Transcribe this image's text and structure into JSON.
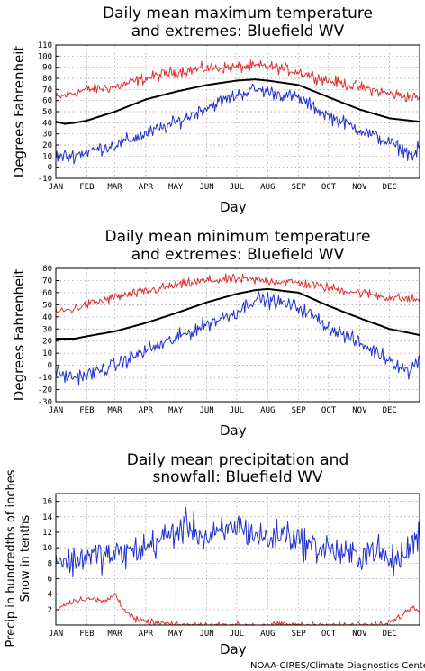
{
  "chart_data": [
    {
      "type": "line",
      "title": [
        "Daily mean maximum temperature",
        "and extremes: Bluefield WV"
      ],
      "xlabel": "Day",
      "ylabel": "Degrees Fahrenheit",
      "months": [
        "JAN",
        "FEB",
        "MAR",
        "APR",
        "MAY",
        "JUN",
        "JUL",
        "AUG",
        "SEP",
        "OCT",
        "NOV",
        "DEC"
      ],
      "ylim": [
        -10,
        110
      ],
      "yticks": [
        -10,
        0,
        10,
        20,
        30,
        40,
        50,
        60,
        70,
        80,
        90,
        100,
        110
      ],
      "grid": true,
      "series": [
        {
          "color": "#e03030",
          "width": 1,
          "noise": 5,
          "x": [
            1,
            15,
            32,
            60,
            91,
            121,
            152,
            182,
            213,
            244,
            274,
            305,
            335,
            365
          ],
          "values": [
            62,
            66,
            70,
            72,
            80,
            86,
            89,
            90,
            91,
            86,
            78,
            72,
            66,
            62
          ]
        },
        {
          "color": "#000000",
          "width": 2,
          "noise": 0,
          "x": [
            1,
            10,
            20,
            32,
            60,
            91,
            121,
            152,
            182,
            200,
            213,
            244,
            274,
            305,
            335,
            365
          ],
          "values": [
            41,
            39,
            40,
            42,
            50,
            61,
            68,
            74,
            78,
            79,
            78,
            74,
            63,
            52,
            44,
            41
          ]
        },
        {
          "color": "#2030d0",
          "width": 1,
          "noise": 6,
          "x": [
            1,
            15,
            32,
            60,
            91,
            121,
            152,
            182,
            200,
            213,
            244,
            274,
            305,
            335,
            360,
            365
          ],
          "values": [
            10,
            10,
            14,
            20,
            30,
            40,
            54,
            65,
            70,
            68,
            62,
            46,
            34,
            22,
            10,
            20
          ]
        }
      ]
    },
    {
      "type": "line",
      "title": [
        "Daily mean minimum temperature",
        "and extremes: Bluefield WV"
      ],
      "xlabel": "Day",
      "ylabel": "Degrees Fahrenheit",
      "months": [
        "JAN",
        "FEB",
        "MAR",
        "APR",
        "MAY",
        "JUN",
        "JUL",
        "AUG",
        "SEP",
        "OCT",
        "NOV",
        "DEC"
      ],
      "ylim": [
        -30,
        80
      ],
      "yticks": [
        -30,
        -20,
        -10,
        0,
        10,
        20,
        30,
        40,
        50,
        60,
        70,
        80
      ],
      "grid": true,
      "series": [
        {
          "color": "#e03030",
          "width": 1,
          "noise": 4,
          "x": [
            1,
            15,
            32,
            60,
            91,
            121,
            152,
            182,
            213,
            244,
            274,
            305,
            335,
            365
          ],
          "values": [
            44,
            46,
            50,
            56,
            61,
            66,
            70,
            71,
            70,
            68,
            64,
            60,
            56,
            54
          ]
        },
        {
          "color": "#000000",
          "width": 2,
          "noise": 0,
          "x": [
            1,
            20,
            32,
            60,
            91,
            121,
            152,
            182,
            200,
            213,
            244,
            274,
            305,
            335,
            365
          ],
          "values": [
            22,
            22,
            24,
            28,
            35,
            43,
            52,
            59,
            62,
            63,
            60,
            49,
            39,
            30,
            25
          ]
        },
        {
          "color": "#2030d0",
          "width": 1,
          "noise": 6,
          "x": [
            1,
            15,
            32,
            60,
            91,
            121,
            152,
            182,
            200,
            213,
            244,
            274,
            305,
            335,
            355,
            365
          ],
          "values": [
            -6,
            -10,
            -8,
            0,
            12,
            22,
            34,
            44,
            55,
            54,
            48,
            32,
            18,
            5,
            -6,
            8
          ]
        }
      ]
    },
    {
      "type": "line",
      "title": [
        "Daily mean precipitation and",
        "snowfall: Bluefield WV"
      ],
      "xlabel": "Day",
      "ylabel": [
        "Precip in hundredths of inches",
        "Snow in tenths"
      ],
      "months": [
        "JAN",
        "FEB",
        "MAR",
        "APR",
        "MAY",
        "JUN",
        "JUL",
        "AUG",
        "SEP",
        "OCT",
        "NOV",
        "DEC"
      ],
      "ylim": [
        0,
        17
      ],
      "yticks": [
        2,
        4,
        6,
        8,
        10,
        12,
        14,
        16
      ],
      "grid": true,
      "series": [
        {
          "color": "#2030d0",
          "width": 1,
          "noise": 2,
          "x": [
            1,
            15,
            32,
            60,
            91,
            105,
            121,
            135,
            152,
            170,
            182,
            195,
            213,
            230,
            244,
            260,
            274,
            290,
            305,
            320,
            335,
            350,
            365
          ],
          "values": [
            9,
            8,
            9,
            9,
            10,
            11,
            12,
            13,
            11,
            12,
            13,
            12,
            11,
            12,
            11,
            10,
            10,
            9,
            9,
            10,
            8,
            9,
            12
          ]
        },
        {
          "color": "#e03030",
          "width": 1,
          "noise": 0.4,
          "x": [
            1,
            15,
            32,
            50,
            60,
            70,
            80,
            91,
            100,
            110,
            120,
            250,
            300,
            330,
            350,
            358,
            365
          ],
          "values": [
            2,
            3,
            3.5,
            3,
            4,
            2,
            0.7,
            0.4,
            0.3,
            0.2,
            0,
            0,
            0,
            0,
            1.5,
            2.5,
            2
          ]
        }
      ]
    }
  ],
  "credit": "NOAA-CIRES/Climate Diagnostics Center"
}
